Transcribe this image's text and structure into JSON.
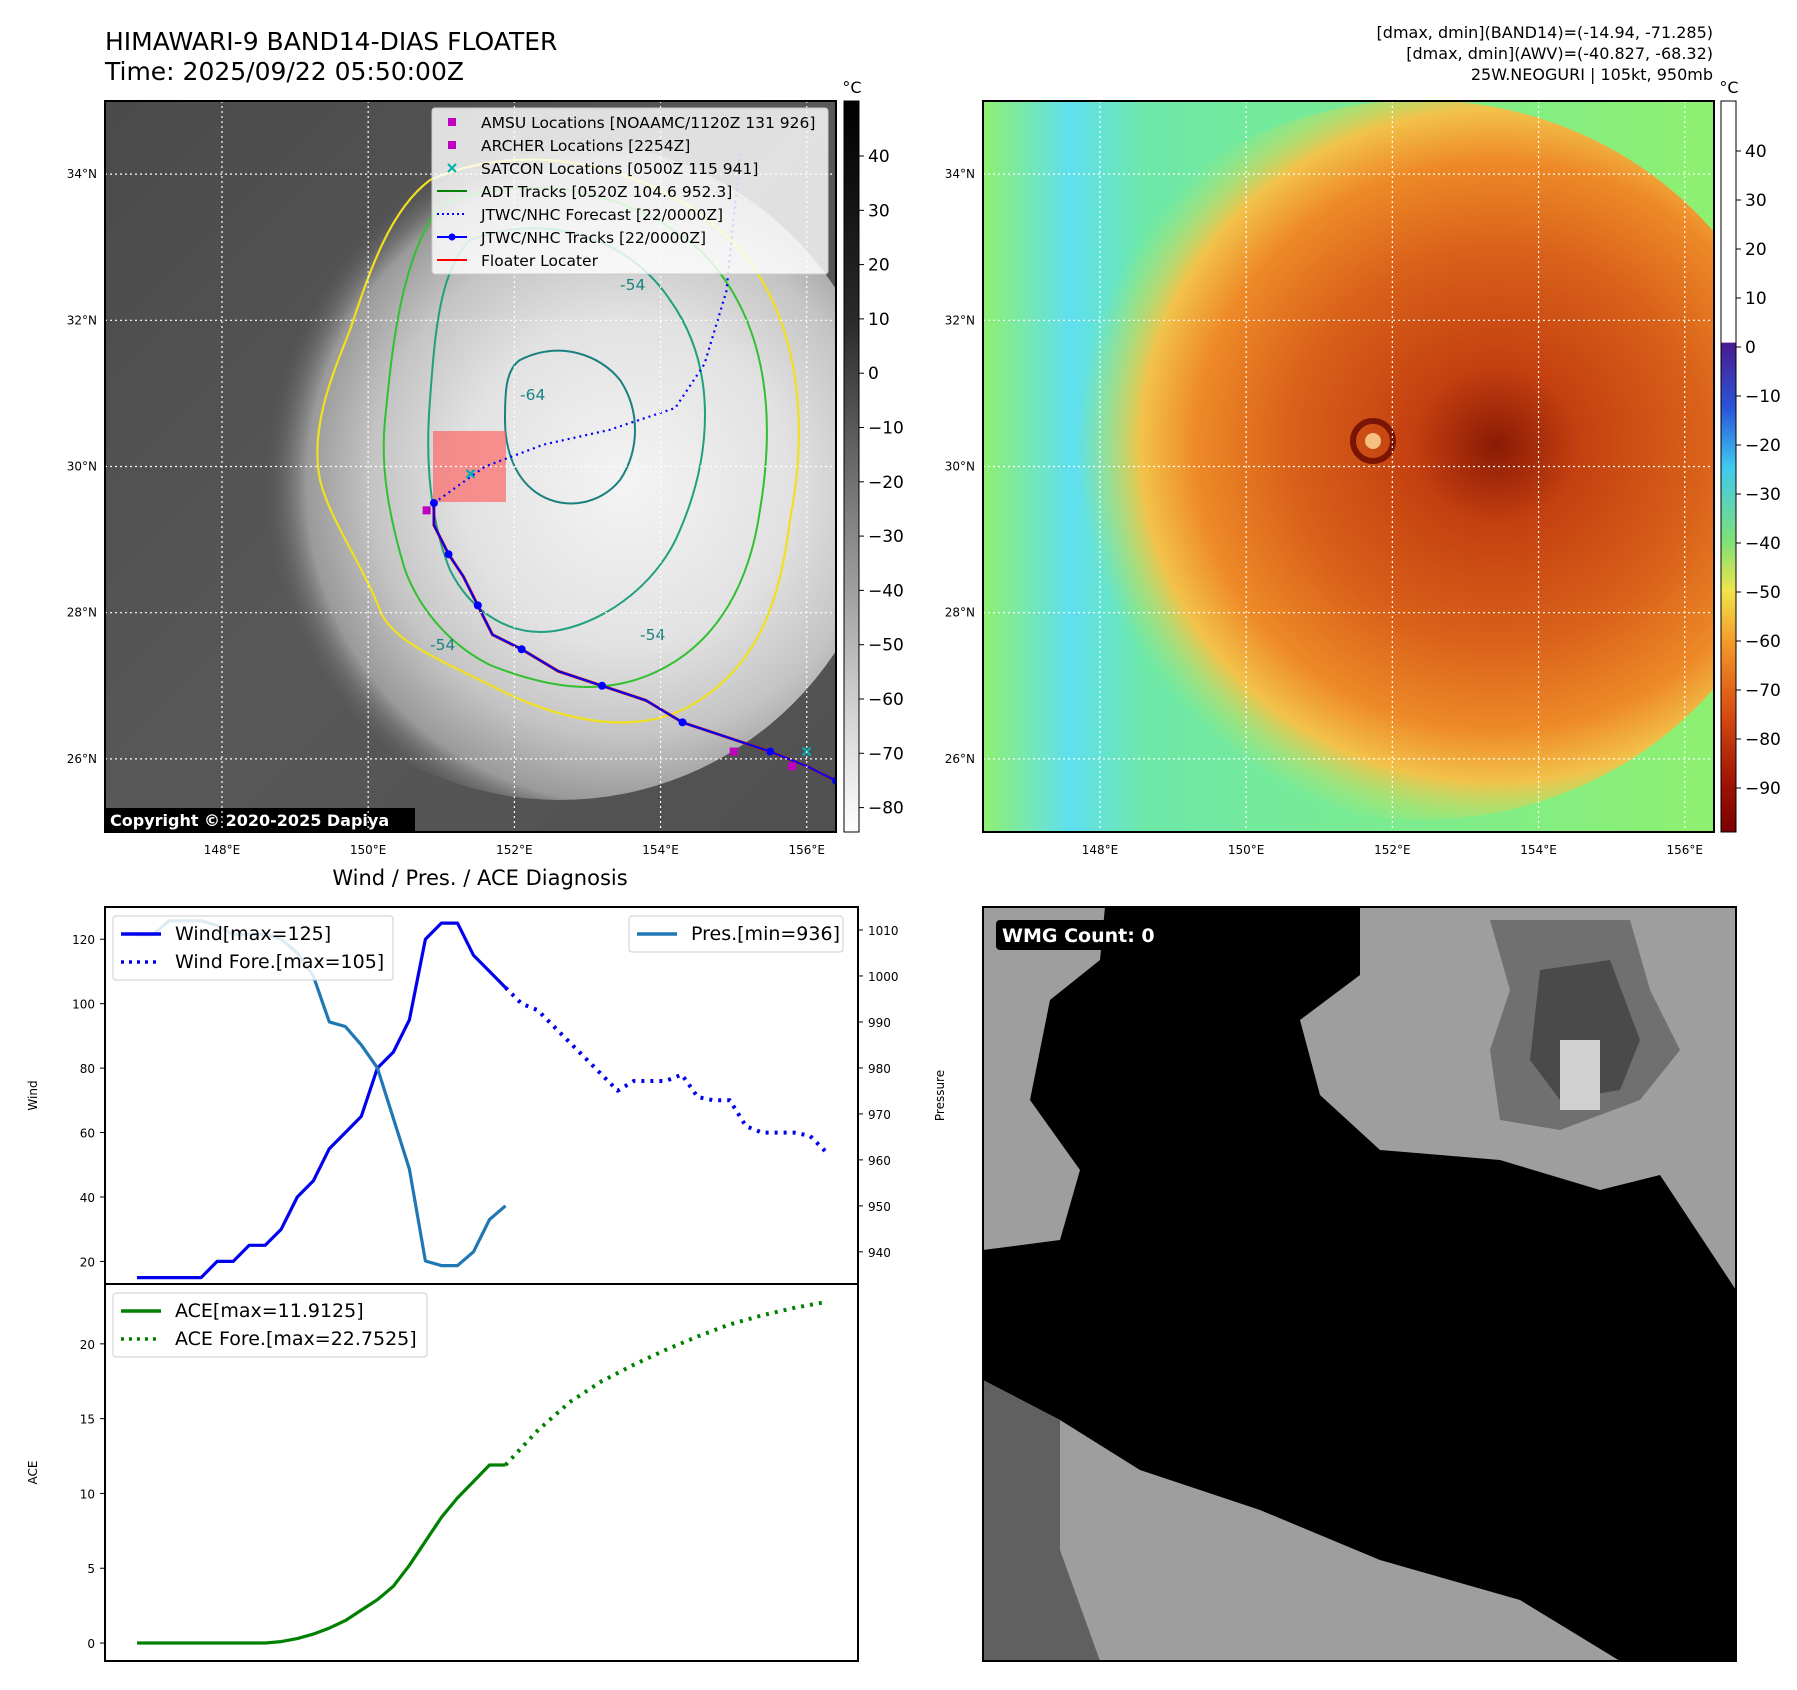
{
  "header": {
    "title_line1": "HIMAWARI-9 BAND14-DIAS FLOATER",
    "title_line2": "Time: 2025/09/22 05:50:00Z",
    "info_line1": "[dmax, dmin](BAND14)=(-14.94, -71.285)",
    "info_line2": "[dmax, dmin](AWV)=(-40.827, -68.32)",
    "info_line3": "25W.NEOGURI | 105kt, 950mb"
  },
  "map_axes": {
    "lon_ticks": [
      "148°E",
      "150°E",
      "152°E",
      "154°E",
      "156°E"
    ],
    "lat_ticks": [
      "34°N",
      "32°N",
      "30°N",
      "28°N",
      "26°N"
    ],
    "lon_range": [
      146.4,
      156.4
    ],
    "lat_range": [
      25.0,
      35.0
    ]
  },
  "ir_panel": {
    "copyright": "Copyright © 2020-2025 Dapiya",
    "colorbar_unit": "°C",
    "colorbar_ticks": [
      "40",
      "30",
      "20",
      "10",
      "0",
      "−10",
      "−20",
      "−30",
      "−40",
      "−50",
      "−60",
      "−70",
      "−80"
    ],
    "contour_labels": [
      "-64",
      "-54",
      "-54",
      "-54"
    ],
    "legend": [
      {
        "label": "AMSU Locations [NOAAMC/1120Z 131 926]",
        "marker": "square",
        "color": "#c000c0"
      },
      {
        "label": "ARCHER Locations [2254Z]",
        "marker": "square",
        "color": "#c000c0"
      },
      {
        "label": "SATCON Locations [0500Z 115 941]",
        "marker": "x",
        "color": "#00b0b0"
      },
      {
        "label": "ADT Tracks [0520Z 104.6 952.3]",
        "marker": "line",
        "color": "#008000"
      },
      {
        "label": "JTWC/NHC Forecast [22/0000Z]",
        "marker": "dotted",
        "color": "#0000ff"
      },
      {
        "label": "JTWC/NHC Tracks [22/0000Z]",
        "marker": "line-dot",
        "color": "#0000ff"
      },
      {
        "label": "Floater Locater",
        "marker": "line",
        "color": "#ff0000"
      }
    ],
    "best_track": [
      [
        156.4,
        25.7
      ],
      [
        156.0,
        25.9
      ],
      [
        155.5,
        26.1
      ],
      [
        154.9,
        26.3
      ],
      [
        154.3,
        26.5
      ],
      [
        153.8,
        26.8
      ],
      [
        153.2,
        27.0
      ],
      [
        152.6,
        27.2
      ],
      [
        152.1,
        27.5
      ],
      [
        151.7,
        27.7
      ],
      [
        151.5,
        28.1
      ],
      [
        151.3,
        28.5
      ],
      [
        151.1,
        28.8
      ],
      [
        150.9,
        29.2
      ],
      [
        150.9,
        29.5
      ]
    ],
    "forecast_track": [
      [
        150.9,
        29.5
      ],
      [
        151.6,
        30.0
      ],
      [
        152.4,
        30.3
      ],
      [
        153.3,
        30.5
      ],
      [
        154.2,
        30.8
      ],
      [
        154.6,
        31.4
      ],
      [
        154.9,
        32.4
      ],
      [
        155.0,
        33.4
      ],
      [
        155.1,
        34.3
      ]
    ],
    "floater_box": {
      "lon": [
        150.9,
        151.9
      ],
      "lat": [
        29.4,
        30.4
      ]
    },
    "amsu_points": [
      [
        150.8,
        29.4
      ],
      [
        155.0,
        26.1
      ],
      [
        155.8,
        25.9
      ]
    ],
    "satcon_points": [
      [
        156.0,
        26.1
      ],
      [
        151.4,
        29.9
      ]
    ]
  },
  "wv_panel": {
    "colorbar_unit": "°C",
    "colorbar_ticks": [
      "40",
      "30",
      "20",
      "10",
      "0",
      "−10",
      "−20",
      "−30",
      "−40",
      "−50",
      "−60",
      "−70",
      "−80",
      "−90"
    ]
  },
  "chart_data": [
    {
      "type": "line",
      "title": "Wind / Pres. / ACE Diagnosis",
      "ylabel": "Wind",
      "y2label": "Pressure",
      "x": [
        0,
        1,
        2,
        3,
        4,
        5,
        6,
        7,
        8,
        9,
        10,
        11,
        12,
        13,
        14,
        15,
        16,
        17,
        18,
        19,
        20,
        21,
        22,
        23,
        24,
        25,
        26,
        27,
        28,
        29,
        30,
        31,
        32,
        33,
        34,
        35,
        36,
        37,
        38,
        39,
        40,
        41,
        42,
        43,
        44
      ],
      "xlim": [
        -2,
        45
      ],
      "ylim": [
        13,
        130
      ],
      "y2lim": [
        933,
        1015
      ],
      "yticks": [
        20,
        40,
        60,
        80,
        100,
        120
      ],
      "y2ticks": [
        940,
        950,
        960,
        970,
        980,
        990,
        1000,
        1010
      ],
      "series": [
        {
          "name": "Wind[max=125]",
          "axis": "left",
          "style": "solid",
          "color": "#0000ee",
          "x": [
            0,
            1,
            2,
            3,
            4,
            5,
            6,
            7,
            8,
            9,
            10,
            11,
            12,
            13,
            14,
            15,
            16,
            17,
            18,
            19,
            20,
            21,
            22,
            23
          ],
          "values": [
            15,
            15,
            15,
            15,
            15,
            20,
            20,
            25,
            25,
            30,
            40,
            45,
            55,
            60,
            65,
            80,
            85,
            95,
            120,
            125,
            125,
            115,
            110,
            105
          ]
        },
        {
          "name": "Wind Fore.[max=105]",
          "axis": "left",
          "style": "dotted",
          "color": "#0000ee",
          "x": [
            23,
            24,
            25,
            26,
            27,
            28,
            29,
            30,
            31,
            32,
            33,
            34,
            35,
            36,
            37,
            38,
            39,
            40,
            41,
            42,
            43
          ],
          "values": [
            105,
            100,
            98,
            93,
            88,
            83,
            78,
            73,
            76,
            76,
            76,
            78,
            71,
            70,
            70,
            62,
            60,
            60,
            60,
            59,
            54
          ]
        },
        {
          "name": "Pres.[min=936]",
          "axis": "right",
          "style": "solid",
          "color": "#1f77b4",
          "x": [
            0,
            1,
            2,
            3,
            4,
            5,
            6,
            7,
            8,
            9,
            10,
            11,
            12,
            13,
            14,
            15,
            16,
            17,
            18,
            19,
            20,
            21,
            22,
            23
          ],
          "values": [
            1009,
            1009,
            1012,
            1012,
            1012,
            1011,
            1009,
            1009,
            1009,
            1008,
            1005,
            1000,
            990,
            989,
            985,
            980,
            969,
            958,
            938,
            937,
            937,
            940,
            947,
            950
          ]
        }
      ]
    },
    {
      "type": "line",
      "ylabel": "ACE",
      "xlim": [
        -2,
        45
      ],
      "ylim": [
        -1.2,
        24
      ],
      "yticks": [
        0,
        5,
        10,
        15,
        20
      ],
      "series": [
        {
          "name": "ACE[max=11.9125]",
          "style": "solid",
          "color": "#008000",
          "x": [
            0,
            1,
            2,
            3,
            4,
            5,
            6,
            7,
            8,
            9,
            10,
            11,
            12,
            13,
            14,
            15,
            16,
            17,
            18,
            19,
            20,
            21,
            22,
            23
          ],
          "values": [
            0,
            0,
            0,
            0,
            0,
            0,
            0,
            0,
            0,
            0.1,
            0.3,
            0.6,
            1.0,
            1.5,
            2.2,
            2.9,
            3.8,
            5.2,
            6.8,
            8.4,
            9.7,
            10.8,
            11.9,
            11.9
          ]
        },
        {
          "name": "ACE Fore.[max=22.7525]",
          "style": "dotted",
          "color": "#008000",
          "x": [
            23,
            25,
            27,
            29,
            31,
            33,
            35,
            37,
            39,
            41,
            43
          ],
          "values": [
            11.9,
            14.2,
            16.1,
            17.5,
            18.6,
            19.6,
            20.5,
            21.3,
            21.9,
            22.4,
            22.8
          ]
        }
      ]
    }
  ],
  "wmg_panel": {
    "label": "WMG Count: 0"
  }
}
